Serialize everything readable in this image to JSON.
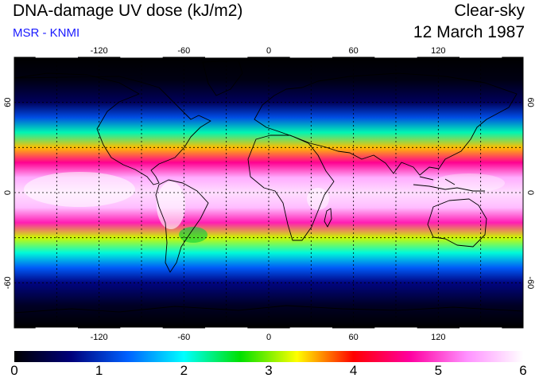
{
  "header": {
    "title": "DNA-damage UV dose (kJ/m2)",
    "subtitle": "MSR - KNMI",
    "condition": "Clear-sky",
    "date": "12 March 1987"
  },
  "map": {
    "projection": "equirectangular",
    "lon_range": [
      -180,
      180
    ],
    "lat_range": [
      -90,
      90
    ],
    "lon_ticks": [
      -120,
      -60,
      0,
      60,
      120
    ],
    "lat_ticks": [
      60,
      0,
      -60
    ],
    "gridlines": "dotted every 30 degrees",
    "colors": {
      "coastline": "#000000",
      "grid": "#000000"
    }
  },
  "colorbar": {
    "min": 0,
    "max": 6,
    "labels": [
      "0",
      "1",
      "2",
      "3",
      "4",
      "5",
      "6"
    ],
    "stops": [
      "#000000",
      "#00007a",
      "#0060ff",
      "#00ffff",
      "#00e000",
      "#ffff00",
      "#ff0000",
      "#ff00a0",
      "#ff90ff",
      "#ffffff"
    ]
  },
  "chart_data": {
    "type": "heatmap",
    "title": "DNA-damage UV dose (kJ/m2)",
    "variable": "clear-sky DNA-damage UV dose",
    "units": "kJ/m2",
    "date": "12 March 1987",
    "zonal_profile": [
      {
        "lat": 90,
        "value": 0.0
      },
      {
        "lat": 75,
        "value": 0.1
      },
      {
        "lat": 60,
        "value": 0.5
      },
      {
        "lat": 50,
        "value": 1.2
      },
      {
        "lat": 40,
        "value": 2.2
      },
      {
        "lat": 30,
        "value": 3.5
      },
      {
        "lat": 20,
        "value": 4.6
      },
      {
        "lat": 10,
        "value": 5.5
      },
      {
        "lat": 0,
        "value": 5.8
      },
      {
        "lat": -10,
        "value": 5.6
      },
      {
        "lat": -20,
        "value": 4.8
      },
      {
        "lat": -30,
        "value": 3.2
      },
      {
        "lat": -40,
        "value": 2.1
      },
      {
        "lat": -50,
        "value": 1.3
      },
      {
        "lat": -60,
        "value": 0.7
      },
      {
        "lat": -75,
        "value": 0.2
      },
      {
        "lat": -90,
        "value": 0.0
      }
    ],
    "colorbar_range": [
      0,
      6
    ]
  }
}
